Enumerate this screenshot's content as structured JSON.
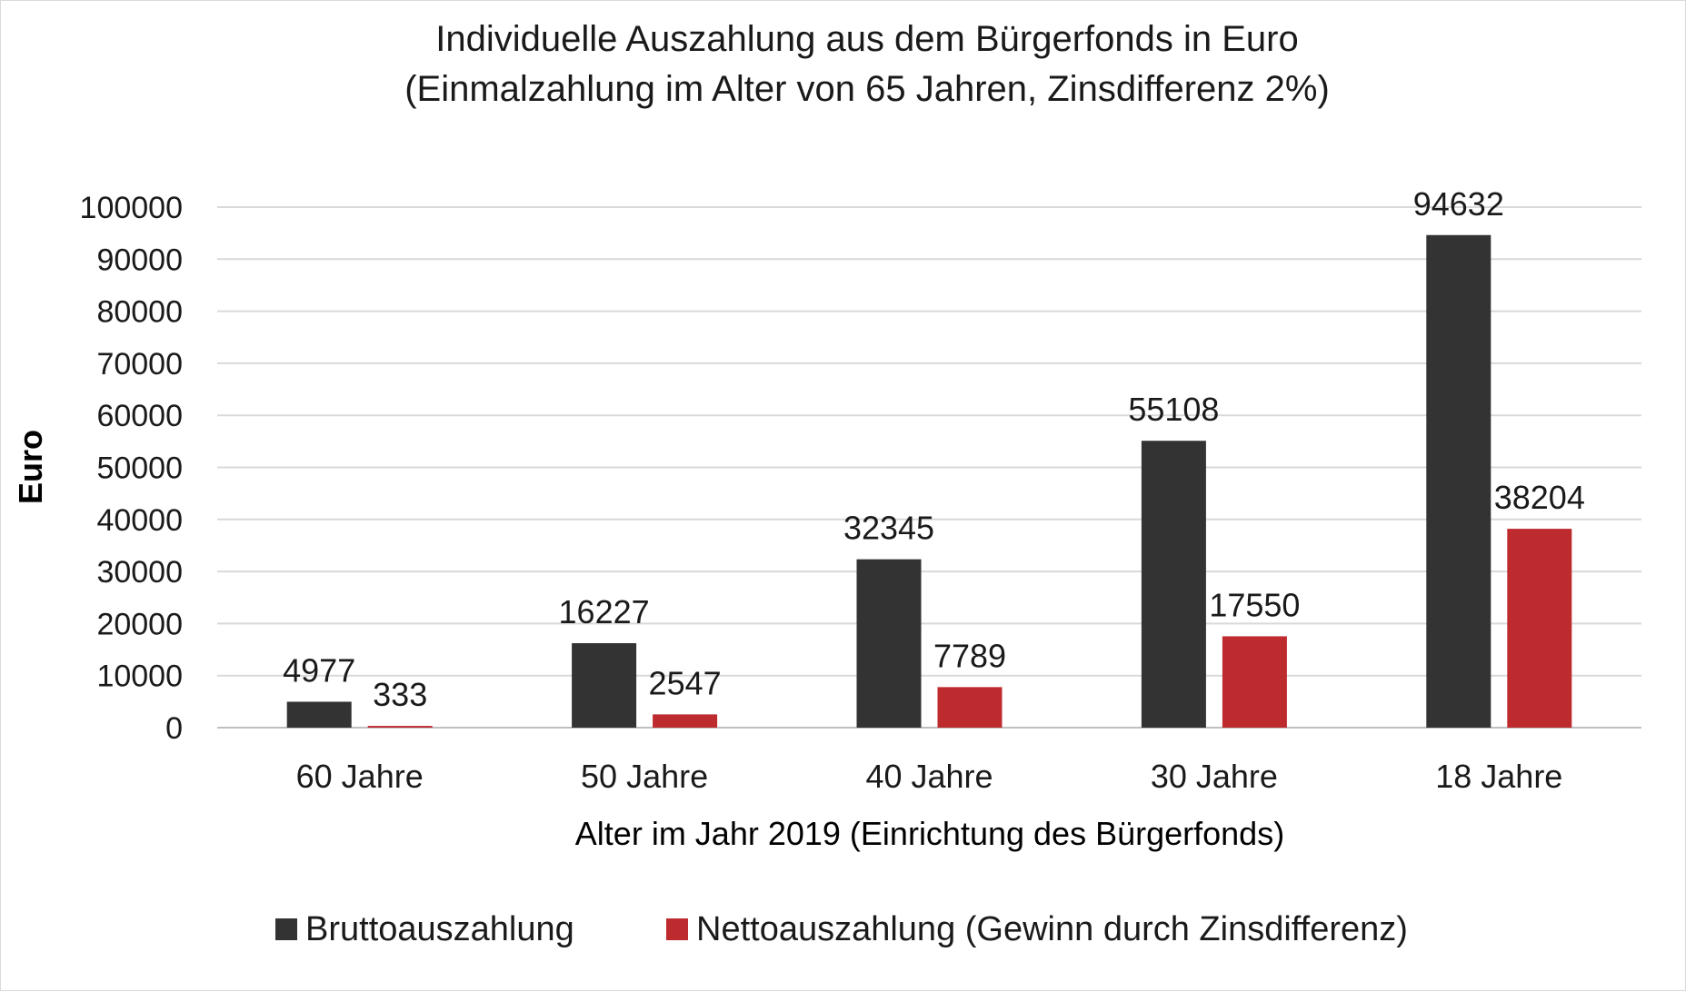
{
  "chart_data": {
    "type": "bar",
    "title": "Individuelle Auszahlung aus dem Bürgerfonds in Euro",
    "subtitle": "(Einmalzahlung im Alter von 65 Jahren, Zinsdifferenz 2%)",
    "xlabel": "Alter im Jahr 2019 (Einrichtung des Bürgerfonds)",
    "ylabel": "Euro",
    "ylim": [
      0,
      100000
    ],
    "yticks": [
      "0",
      "10000",
      "20000",
      "30000",
      "40000",
      "50000",
      "60000",
      "70000",
      "80000",
      "90000",
      "100000"
    ],
    "categories": [
      "60 Jahre",
      "50 Jahre",
      "40 Jahre",
      "30 Jahre",
      "18 Jahre"
    ],
    "series": [
      {
        "name": "Bruttoauszahlung",
        "color": "#333333",
        "values": [
          4977,
          16227,
          32345,
          55108,
          94632
        ],
        "labels": [
          "4977",
          "16227",
          "32345",
          "55108",
          "94632"
        ]
      },
      {
        "name": "Nettoauszahlung (Gewinn durch Zinsdifferenz)",
        "color": "#be2b2e",
        "values": [
          333,
          2547,
          7789,
          17550,
          38204
        ],
        "labels": [
          "333",
          "2547",
          "7789",
          "17550",
          "38204"
        ]
      }
    ],
    "grid": true,
    "legend": "bottom"
  }
}
